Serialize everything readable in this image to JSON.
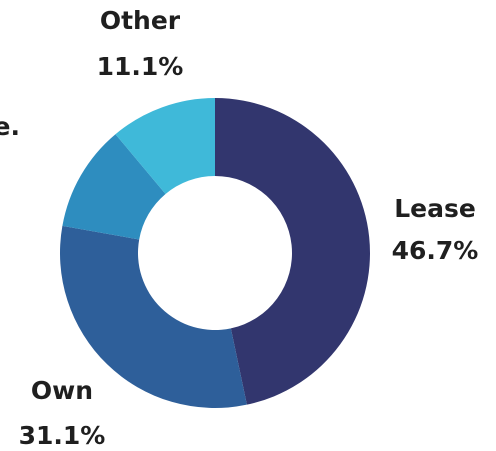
{
  "chart_data": {
    "type": "donut",
    "categories": [
      "Lease",
      "Own",
      "e.",
      "Other"
    ],
    "values": [
      46.7,
      31.1,
      11.1,
      11.1
    ],
    "value_labels": [
      "46.7%",
      "31.1%",
      null,
      "11.1%"
    ],
    "colors": [
      "#32366e",
      "#2e5f9a",
      "#2e8dbf",
      "#3fb9d9"
    ]
  }
}
